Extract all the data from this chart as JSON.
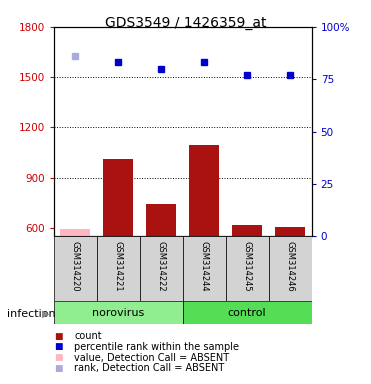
{
  "title": "GDS3549 / 1426359_at",
  "samples": [
    "GSM314220",
    "GSM314221",
    "GSM314222",
    "GSM314244",
    "GSM314245",
    "GSM314246"
  ],
  "group_ranges": [
    [
      "norovirus",
      0,
      2,
      "#90ee90"
    ],
    [
      "control",
      3,
      5,
      "#55dd55"
    ]
  ],
  "bar_values": [
    590,
    1010,
    740,
    1095,
    615,
    605
  ],
  "bar_colors": [
    "#ffb6c1",
    "#aa1111",
    "#aa1111",
    "#aa1111",
    "#aa1111",
    "#aa1111"
  ],
  "percentile_values": [
    86,
    83,
    80,
    83,
    77,
    77
  ],
  "percentile_colors": [
    "#aaaadd",
    "#0000cc",
    "#0000cc",
    "#0000cc",
    "#0000cc",
    "#0000cc"
  ],
  "ylim_left": [
    550,
    1800
  ],
  "ylim_right": [
    0,
    100
  ],
  "yticks_left": [
    600,
    900,
    1200,
    1500,
    1800
  ],
  "yticks_right": [
    0,
    25,
    50,
    75,
    100
  ],
  "ytick_right_labels": [
    "0",
    "25",
    "50",
    "75",
    "100%"
  ],
  "left_tick_color": "#cc0000",
  "right_tick_color": "#0000cc",
  "grid_lines": [
    900,
    1200,
    1500
  ],
  "infection_label": "infection",
  "legend": [
    [
      "s",
      "#aa1111",
      "count"
    ],
    [
      "s",
      "#0000cc",
      "percentile rank within the sample"
    ],
    [
      "s",
      "#ffb6c1",
      "value, Detection Call = ABSENT"
    ],
    [
      "s",
      "#aaaadd",
      "rank, Detection Call = ABSENT"
    ]
  ]
}
